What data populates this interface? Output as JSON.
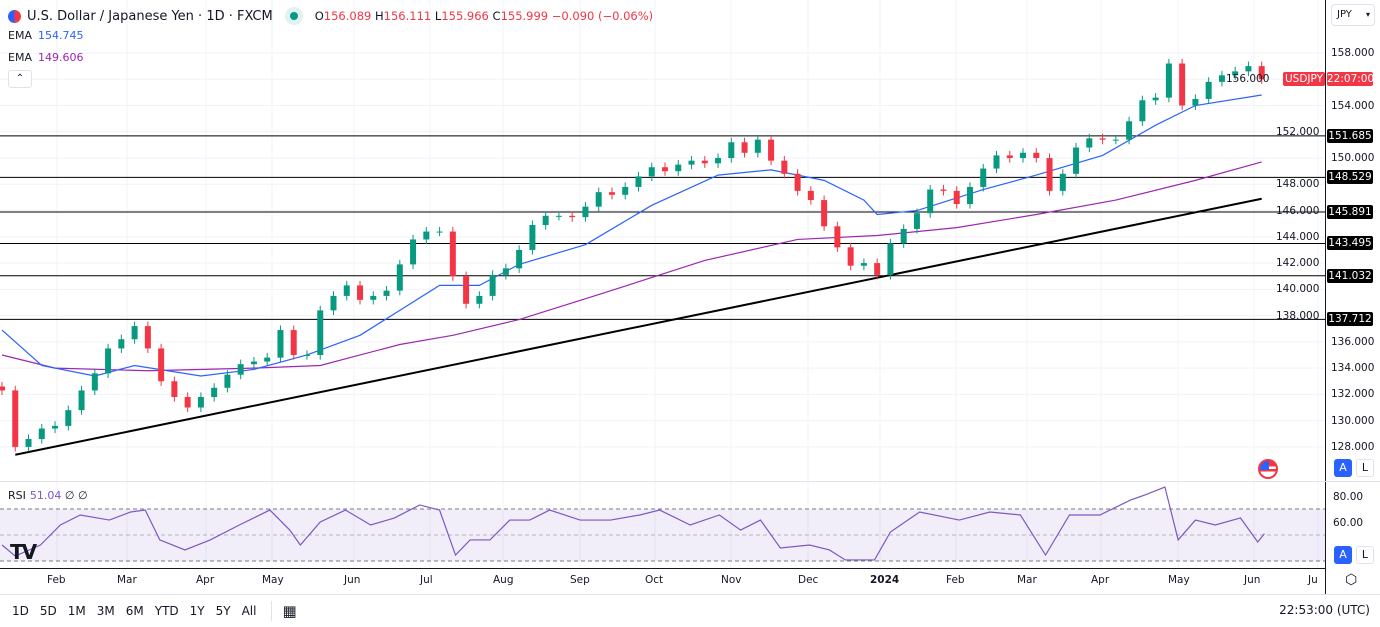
{
  "header": {
    "symbol_title": "U.S. Dollar / Japanese Yen · 1D · FXCM",
    "open_label": "O",
    "open": "156.089",
    "high_label": "H",
    "high": "156.111",
    "low_label": "L",
    "low": "155.966",
    "close_label": "C",
    "close": "155.999",
    "change": "−0.090 (−0.06%)"
  },
  "indicators": {
    "ema1": {
      "label": "EMA",
      "value": "154.745",
      "color": "#2962ff"
    },
    "ema2": {
      "label": "EMA",
      "value": "149.606",
      "color": "#9c27b0"
    },
    "rsi": {
      "label": "RSI",
      "value": "51.04",
      "extra1": "∅",
      "extra2": "∅",
      "color": "#7e57c2"
    }
  },
  "price_axis": {
    "currency": "JPY",
    "labels": [
      "158.000",
      "156.000",
      "154.000",
      "152.000",
      "150.000",
      "148.000",
      "146.000",
      "144.000",
      "142.000",
      "140.000",
      "138.000",
      "136.000",
      "134.000",
      "132.000",
      "130.000",
      "128.000"
    ],
    "symbol_badge": "USDJPY",
    "countdown": "22:07:00",
    "rsi_labels": [
      "80.00",
      "60.00"
    ],
    "auto_label": "A",
    "log_label": "L"
  },
  "levels": [
    "151.685",
    "148.529",
    "145.891",
    "143.495",
    "141.032",
    "137.712"
  ],
  "time_axis": [
    "Feb",
    "Mar",
    "Apr",
    "May",
    "Jun",
    "Jul",
    "Aug",
    "Sep",
    "Oct",
    "Nov",
    "Dec",
    "2024",
    "Feb",
    "Mar",
    "Apr",
    "May",
    "Jun",
    "Ju"
  ],
  "toolbar": {
    "ranges": [
      "1D",
      "5D",
      "1M",
      "3M",
      "6M",
      "YTD",
      "1Y",
      "5Y",
      "All"
    ],
    "clock": "22:53:00 (UTC)"
  },
  "colors": {
    "up": "#089981",
    "down": "#f23645",
    "level": "#000000",
    "trendline": "#000000"
  },
  "chart_data": {
    "type": "candlestick",
    "ylim": [
      126,
      161
    ],
    "grid": true,
    "closes": [
      132.3,
      128.0,
      128.6,
      129.4,
      129.6,
      130.8,
      132.3,
      133.6,
      135.5,
      136.2,
      137.2,
      135.5,
      133.0,
      131.8,
      131.0,
      131.8,
      132.5,
      133.5,
      134.3,
      134.5,
      134.8,
      136.9,
      135.0,
      135.0,
      138.4,
      139.5,
      140.3,
      139.2,
      139.5,
      139.9,
      141.9,
      143.8,
      144.4,
      144.4,
      141.0,
      138.9,
      139.5,
      141.1,
      141.6,
      143.0,
      144.9,
      145.6,
      145.6,
      145.5,
      146.3,
      147.4,
      147.2,
      147.8,
      148.6,
      149.3,
      149.0,
      149.5,
      149.8,
      149.6,
      150.0,
      151.2,
      150.4,
      151.4,
      149.8,
      148.8,
      147.5,
      146.8,
      144.8,
      143.2,
      141.8,
      142.0,
      141.1,
      143.5,
      144.6,
      145.8,
      147.6,
      147.5,
      146.5,
      147.8,
      149.2,
      150.2,
      150.0,
      150.4,
      150.0,
      147.5,
      148.8,
      150.8,
      151.5,
      151.4,
      151.4,
      152.8,
      154.4,
      154.6,
      157.2,
      154.0,
      154.5,
      155.8,
      156.3,
      156.6,
      157.0,
      156.0
    ],
    "ema_fast": [
      [
        0,
        136.9
      ],
      [
        3,
        134.2
      ],
      [
        7,
        133.4
      ],
      [
        10,
        134.2
      ],
      [
        15,
        133.4
      ],
      [
        19,
        133.9
      ],
      [
        23,
        135.0
      ],
      [
        27,
        136.5
      ],
      [
        30,
        138.4
      ],
      [
        33,
        140.3
      ],
      [
        36,
        140.3
      ],
      [
        39,
        141.9
      ],
      [
        44,
        143.4
      ],
      [
        49,
        146.4
      ],
      [
        54,
        148.7
      ],
      [
        58,
        149.1
      ],
      [
        62,
        148.3
      ],
      [
        65,
        146.8
      ],
      [
        66,
        145.7
      ],
      [
        69,
        146.0
      ],
      [
        74,
        147.6
      ],
      [
        78,
        148.7
      ],
      [
        83,
        150.2
      ],
      [
        87,
        152.5
      ],
      [
        90,
        154.0
      ],
      [
        95,
        154.8
      ]
    ],
    "ema_slow": [
      [
        0,
        135.0
      ],
      [
        4,
        134.0
      ],
      [
        11,
        133.8
      ],
      [
        19,
        134.0
      ],
      [
        24,
        134.2
      ],
      [
        30,
        135.8
      ],
      [
        34,
        136.5
      ],
      [
        39,
        137.7
      ],
      [
        45,
        139.6
      ],
      [
        53,
        142.2
      ],
      [
        60,
        143.8
      ],
      [
        66,
        144.1
      ],
      [
        72,
        144.7
      ],
      [
        78,
        145.7
      ],
      [
        84,
        146.8
      ],
      [
        90,
        148.3
      ],
      [
        95,
        149.7
      ]
    ],
    "trendline": [
      [
        1,
        127.4
      ],
      [
        95,
        146.9
      ]
    ],
    "rsi": {
      "ylim": [
        20,
        90
      ],
      "bands": [
        30,
        50,
        70
      ],
      "points": [
        [
          0,
          42.3
        ],
        [
          1,
          33.8
        ],
        [
          2.9,
          42.3
        ],
        [
          4.4,
          57.7
        ],
        [
          5.9,
          65.4
        ],
        [
          8.1,
          61.5
        ],
        [
          9.7,
          67.7
        ],
        [
          10.8,
          69.2
        ],
        [
          11.9,
          46.2
        ],
        [
          13.8,
          38.5
        ],
        [
          15.7,
          46.2
        ],
        [
          17.9,
          57.7
        ],
        [
          20.2,
          69.2
        ],
        [
          21.7,
          53.8
        ],
        [
          22.5,
          42.3
        ],
        [
          24,
          60
        ],
        [
          25.9,
          69.2
        ],
        [
          27.8,
          57.7
        ],
        [
          29.6,
          63.1
        ],
        [
          31.5,
          73.1
        ],
        [
          33,
          69.2
        ],
        [
          34.2,
          34.6
        ],
        [
          35.3,
          46.2
        ],
        [
          36.8,
          46.2
        ],
        [
          38.3,
          61.5
        ],
        [
          39.8,
          61.5
        ],
        [
          41.3,
          69.2
        ],
        [
          43.6,
          61.5
        ],
        [
          45.9,
          61.5
        ],
        [
          48.1,
          65.4
        ],
        [
          49.6,
          69.2
        ],
        [
          51.9,
          57.7
        ],
        [
          54.1,
          65.4
        ],
        [
          55.7,
          53.8
        ],
        [
          57.2,
          61.5
        ],
        [
          58.7,
          40
        ],
        [
          60.9,
          42.3
        ],
        [
          62.4,
          38.5
        ],
        [
          63.6,
          30.8
        ],
        [
          65.8,
          30.8
        ],
        [
          67,
          52.3
        ],
        [
          69.2,
          67.7
        ],
        [
          72.2,
          61.5
        ],
        [
          74.5,
          67.7
        ],
        [
          76.8,
          65.4
        ],
        [
          78.7,
          34.6
        ],
        [
          80.5,
          65.4
        ],
        [
          82.8,
          65.4
        ],
        [
          85.1,
          76.9
        ],
        [
          86.2,
          80.8
        ],
        [
          87.7,
          86.9
        ],
        [
          88.7,
          46.2
        ],
        [
          90,
          61.5
        ],
        [
          91.5,
          57.7
        ],
        [
          93.4,
          63.1
        ],
        [
          94.7,
          44.6
        ],
        [
          95.2,
          51.0
        ]
      ]
    }
  }
}
